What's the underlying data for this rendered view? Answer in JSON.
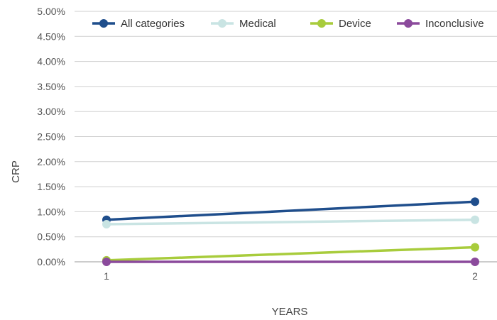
{
  "chart_data": {
    "type": "line",
    "title": "",
    "xlabel": "YEARS",
    "ylabel": "CRP",
    "x": [
      1,
      2
    ],
    "x_tick_labels": [
      "1",
      "2"
    ],
    "ylim": [
      0,
      5
    ],
    "y_tick_values": [
      0,
      0.5,
      1,
      1.5,
      2,
      2.5,
      3,
      3.5,
      4,
      4.5,
      5
    ],
    "y_tick_labels": [
      "0.00%",
      "0.50%",
      "1.00%",
      "1.50%",
      "2.00%",
      "2.50%",
      "3.00%",
      "3.50%",
      "4.00%",
      "4.50%",
      "5.00%"
    ],
    "grid": true,
    "legend_position": "top",
    "series": [
      {
        "name": "All categories",
        "values": [
          0.84,
          1.2
        ],
        "color": "#1f4e8c"
      },
      {
        "name": "Medical",
        "values": [
          0.75,
          0.84
        ],
        "color": "#c9e4e3"
      },
      {
        "name": "Device",
        "values": [
          0.03,
          0.29
        ],
        "color": "#a8cc3c"
      },
      {
        "name": "Inconclusive",
        "values": [
          0.0,
          0.0
        ],
        "color": "#8b4a9c"
      }
    ]
  }
}
